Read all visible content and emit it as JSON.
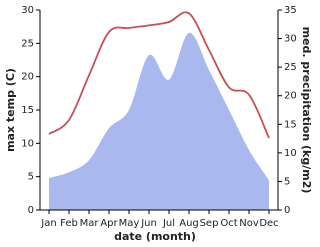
{
  "chart_data": {
    "type": "line",
    "xlabel": "date (month)",
    "ylabel": "max temp (C)",
    "y2label": "med. precipitation (kg/m2)",
    "categories": [
      "Jan",
      "Feb",
      "Mar",
      "Apr",
      "May",
      "Jun",
      "Jul",
      "Aug",
      "Sep",
      "Oct",
      "Nov",
      "Dec"
    ],
    "series": [
      {
        "color": "#aab8f0",
        "axis": "y2",
        "fill": true,
        "values": [
          5.6,
          6.6,
          8.7,
          14.3,
          17.5,
          27.1,
          22.8,
          31,
          24.5,
          17.5,
          10.5,
          5.2
        ]
      },
      {
        "color": "#c85050",
        "values": [
          11.4,
          13.5,
          20.2,
          26.7,
          27.3,
          27.7,
          28.2,
          29.5,
          24,
          18.4,
          17.3,
          10.8
        ]
      }
    ],
    "ylim": [
      0,
      30
    ],
    "yticks": [
      0,
      5,
      10,
      15,
      20,
      25,
      30
    ],
    "y2lim": [
      0,
      35
    ],
    "y2ticks": [
      0,
      5,
      10,
      15,
      20,
      25,
      30,
      35
    ]
  }
}
